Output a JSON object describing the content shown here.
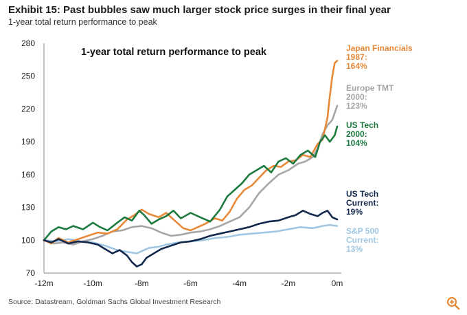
{
  "header": {
    "title": "Exhibit 15: Past bubbles saw much larger stock price surges in their final year",
    "subtitle": "1-year total return performance to peak"
  },
  "footer": {
    "source": "Source: Datastream, Goldman Sachs Global Investment Research",
    "zoom_icon": "zoom-in-icon"
  },
  "chart_data": {
    "type": "line",
    "title": "1-year total return performance to peak",
    "xlabel": "",
    "ylabel": "",
    "x_ticks": [
      -12,
      -10,
      -8,
      -6,
      -4,
      -2,
      0
    ],
    "x_tick_labels": [
      "-12m",
      "-10m",
      "-8m",
      "-6m",
      "-4m",
      "-2m",
      "0m"
    ],
    "xlim": [
      -12,
      0.2
    ],
    "ylim": [
      70,
      280
    ],
    "y_ticks": [
      70,
      100,
      130,
      160,
      190,
      220,
      250,
      280
    ],
    "y_tick_labels": [
      "70",
      "100",
      "130",
      "160",
      "190",
      "220",
      "250",
      "280"
    ],
    "grid": false,
    "series": [
      {
        "name": "Japan Financials 1987",
        "label_lines": [
          "Japan Financials",
          "1987:",
          "164%"
        ],
        "color": "#e8893a",
        "x": [
          -12,
          -11.7,
          -11.4,
          -11,
          -10.6,
          -10.2,
          -9.8,
          -9.4,
          -9,
          -8.6,
          -8.3,
          -8,
          -7.7,
          -7.3,
          -7,
          -6.6,
          -6.3,
          -6,
          -5.7,
          -5.4,
          -5,
          -4.7,
          -4.4,
          -4.1,
          -3.8,
          -3.5,
          -3.2,
          -2.9,
          -2.6,
          -2.3,
          -2,
          -1.7,
          -1.4,
          -1.1,
          -0.8,
          -0.6,
          -0.4,
          -0.3,
          -0.2,
          -0.1,
          0
        ],
        "values": [
          100,
          97,
          102,
          98,
          101,
          104,
          107,
          106,
          110,
          119,
          123,
          128,
          124,
          121,
          125,
          117,
          111,
          109,
          112,
          115,
          120,
          118,
          126,
          138,
          146,
          150,
          157,
          164,
          168,
          167,
          172,
          173,
          178,
          176,
          188,
          192,
          212,
          232,
          250,
          262,
          264
        ]
      },
      {
        "name": "Europe TMT 2000",
        "label_lines": [
          "Europe TMT",
          "2000:",
          "123%"
        ],
        "color": "#a6a6a6",
        "x": [
          -12,
          -11.6,
          -11.2,
          -10.8,
          -10.4,
          -10,
          -9.6,
          -9.2,
          -8.8,
          -8.4,
          -8,
          -7.6,
          -7.2,
          -6.8,
          -6.4,
          -6,
          -5.6,
          -5.2,
          -4.8,
          -4.4,
          -4,
          -3.6,
          -3.2,
          -2.8,
          -2.4,
          -2,
          -1.6,
          -1.3,
          -1,
          -0.8,
          -0.6,
          -0.4,
          -0.2,
          0
        ],
        "values": [
          100,
          97,
          98,
          96,
          99,
          101,
          104,
          108,
          109,
          112,
          113,
          111,
          107,
          104,
          105,
          107,
          108,
          110,
          113,
          117,
          121,
          130,
          143,
          152,
          160,
          164,
          170,
          172,
          176,
          184,
          197,
          205,
          210,
          223
        ]
      },
      {
        "name": "US Tech 2000",
        "label_lines": [
          "US Tech",
          "2000:",
          "104%"
        ],
        "color": "#1c7a3e",
        "x": [
          -12,
          -11.7,
          -11.4,
          -11.1,
          -10.8,
          -10.4,
          -10,
          -9.7,
          -9.4,
          -9,
          -8.7,
          -8.4,
          -8.1,
          -7.9,
          -7.6,
          -7.3,
          -7,
          -6.7,
          -6.4,
          -6,
          -5.6,
          -5.2,
          -4.8,
          -4.5,
          -4.2,
          -3.9,
          -3.6,
          -3.3,
          -3,
          -2.7,
          -2.4,
          -2.1,
          -1.8,
          -1.5,
          -1.2,
          -0.9,
          -0.7,
          -0.5,
          -0.3,
          -0.1,
          0
        ],
        "values": [
          100,
          108,
          112,
          110,
          113,
          110,
          116,
          112,
          109,
          116,
          121,
          118,
          127,
          123,
          115,
          119,
          122,
          127,
          120,
          125,
          121,
          117,
          128,
          140,
          146,
          152,
          160,
          164,
          168,
          162,
          172,
          175,
          170,
          178,
          182,
          176,
          190,
          196,
          190,
          196,
          204
        ]
      },
      {
        "name": "US Tech Current",
        "label_lines": [
          "US Tech",
          "Current:",
          "19%"
        ],
        "color": "#12284c",
        "x": [
          -12,
          -11.7,
          -11.4,
          -11,
          -10.6,
          -10.2,
          -9.8,
          -9.5,
          -9.2,
          -8.9,
          -8.6,
          -8.4,
          -8.2,
          -8.0,
          -7.8,
          -7.5,
          -7.2,
          -6.8,
          -6.4,
          -6,
          -5.6,
          -5.2,
          -4.8,
          -4.4,
          -4,
          -3.6,
          -3.2,
          -2.8,
          -2.4,
          -2,
          -1.7,
          -1.4,
          -1.1,
          -0.8,
          -0.6,
          -0.4,
          -0.2,
          0
        ],
        "values": [
          100,
          98,
          101,
          97,
          99,
          98,
          96,
          92,
          88,
          91,
          86,
          80,
          76,
          78,
          84,
          88,
          92,
          95,
          98,
          99,
          101,
          104,
          106,
          108,
          110,
          112,
          115,
          117,
          118,
          121,
          123,
          127,
          124,
          122,
          125,
          127,
          121,
          119
        ]
      },
      {
        "name": "S&P 500 Current",
        "label_lines": [
          "S&P 500",
          "Current:",
          "13%"
        ],
        "color": "#9fc7e3",
        "x": [
          -12,
          -11.5,
          -11,
          -10.5,
          -10,
          -9.5,
          -9,
          -8.5,
          -8.2,
          -8,
          -7.7,
          -7.3,
          -7,
          -6.5,
          -6,
          -5.5,
          -5,
          -4.5,
          -4,
          -3.5,
          -3,
          -2.5,
          -2,
          -1.5,
          -1,
          -0.6,
          -0.3,
          0
        ],
        "values": [
          100,
          99,
          101,
          99,
          98,
          95,
          91,
          89,
          88,
          90,
          93,
          94,
          96,
          98,
          99,
          100,
          102,
          103,
          105,
          106,
          107,
          108,
          110,
          112,
          111,
          113,
          114,
          113
        ]
      }
    ]
  }
}
